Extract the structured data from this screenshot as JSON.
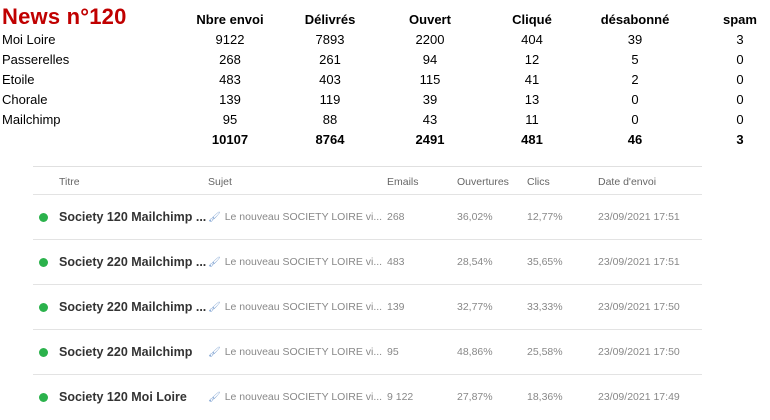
{
  "summary": {
    "title": "News n°120",
    "headers": [
      "Nbre envoi",
      "Délivrés",
      "Ouvert",
      "Cliqué",
      "désabonné",
      "spam"
    ],
    "rows": [
      {
        "name": "Moi Loire",
        "values": [
          "9122",
          "7893",
          "2200",
          "404",
          "39",
          "3"
        ]
      },
      {
        "name": "Passerelles",
        "values": [
          "268",
          "261",
          "94",
          "12",
          "5",
          "0"
        ]
      },
      {
        "name": "Etoile",
        "values": [
          "483",
          "403",
          "115",
          "41",
          "2",
          "0"
        ]
      },
      {
        "name": "Chorale",
        "values": [
          "139",
          "119",
          "39",
          "13",
          "0",
          "0"
        ]
      },
      {
        "name": "Mailchimp",
        "values": [
          "95",
          "88",
          "43",
          "11",
          "0",
          "0"
        ]
      }
    ],
    "totals": [
      "10107",
      "8764",
      "2491",
      "481",
      "46",
      "3"
    ]
  },
  "campaigns": {
    "headers": {
      "title": "Titre",
      "subject": "Sujet",
      "emails": "Emails",
      "opens": "Ouvertures",
      "clicks": "Clics",
      "date": "Date d'envoi"
    },
    "rows": [
      {
        "status_color": "#2bb24c",
        "title": "Society 120 Mailchimp ...",
        "subject": "Le nouveau SOCIETY LOIRE vi...",
        "emails": "268",
        "opens": "36,02%",
        "clicks": "12,77%",
        "date": "23/09/2021 17:51"
      },
      {
        "status_color": "#2bb24c",
        "title": "Society 220 Mailchimp ...",
        "subject": "Le nouveau SOCIETY LOIRE vi...",
        "emails": "483",
        "opens": "28,54%",
        "clicks": "35,65%",
        "date": "23/09/2021 17:51"
      },
      {
        "status_color": "#2bb24c",
        "title": "Society 220 Mailchimp ...",
        "subject": "Le nouveau SOCIETY LOIRE vi...",
        "emails": "139",
        "opens": "32,77%",
        "clicks": "33,33%",
        "date": "23/09/2021 17:50"
      },
      {
        "status_color": "#2bb24c",
        "title": "Society 220 Mailchimp",
        "subject": "Le nouveau SOCIETY LOIRE vi...",
        "emails": "95",
        "opens": "48,86%",
        "clicks": "25,58%",
        "date": "23/09/2021 17:50"
      },
      {
        "status_color": "#2bb24c",
        "title": "Society 120 Moi Loire",
        "subject": "Le nouveau SOCIETY LOIRE vi...",
        "emails": "9 122",
        "opens": "27,87%",
        "clicks": "18,36%",
        "date": "23/09/2021 17:49"
      }
    ],
    "icons": {
      "subject": "pin-icon",
      "status": "status-dot-icon"
    }
  }
}
